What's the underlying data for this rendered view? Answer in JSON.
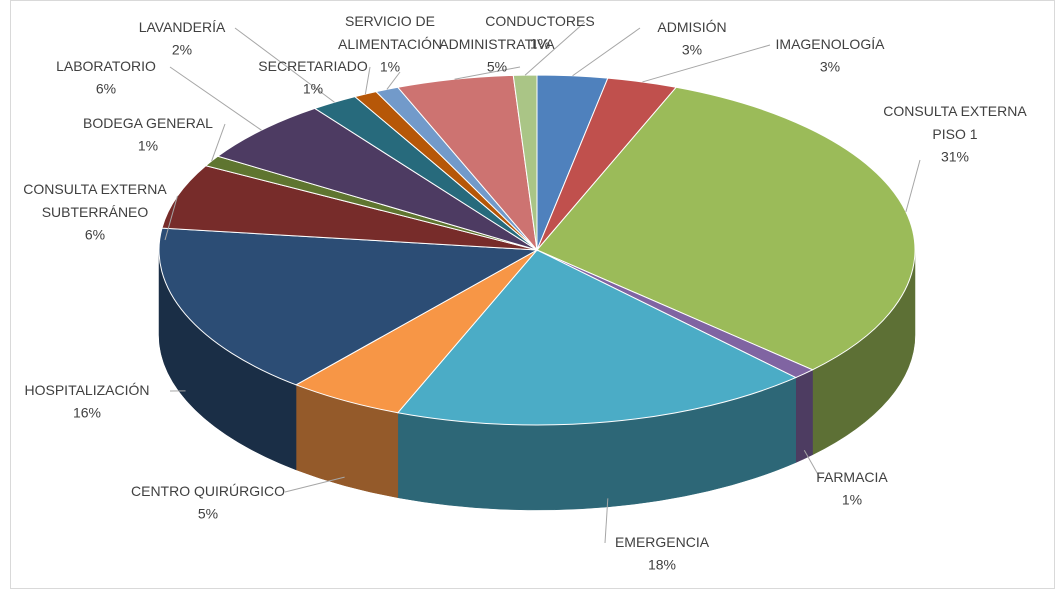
{
  "chart_data": {
    "type": "pie3d",
    "categories": [
      "ADMISIÓN",
      "IMAGENOLOGÍA",
      "CONSULTA EXTERNA\nPISO 1",
      "FARMACIA",
      "EMERGENCIA",
      "CENTRO QUIRÚRGICO",
      "HOSPITALIZACIÓN",
      "CONSULTA EXTERNA\nSUBTERRÁNEO",
      "BODEGA GENERAL",
      "LABORATORIO",
      "LAVANDERÍA",
      "SECRETARIADO",
      "SERVICIO DE\nALIMENTACIÓN",
      "ADMINISTRATIVA",
      "CONDUCTORES"
    ],
    "values": [
      3,
      3,
      31,
      1,
      18,
      5,
      16,
      6,
      1,
      6,
      2,
      1,
      1,
      5,
      1
    ],
    "value_labels": [
      "3%",
      "3%",
      "31%",
      "1%",
      "18%",
      "5%",
      "16%",
      "6%",
      "1%",
      "6%",
      "2%",
      "1%",
      "1%",
      "5%",
      "1%"
    ],
    "colors": [
      "#4f81bd",
      "#c0504d",
      "#9bbb59",
      "#8064a2",
      "#4bacc6",
      "#f79646",
      "#2c4d75",
      "#772c2a",
      "#5f7530",
      "#4d3b62",
      "#276a7c",
      "#b65708",
      "#729aca",
      "#cd7371",
      "#aac586"
    ]
  }
}
